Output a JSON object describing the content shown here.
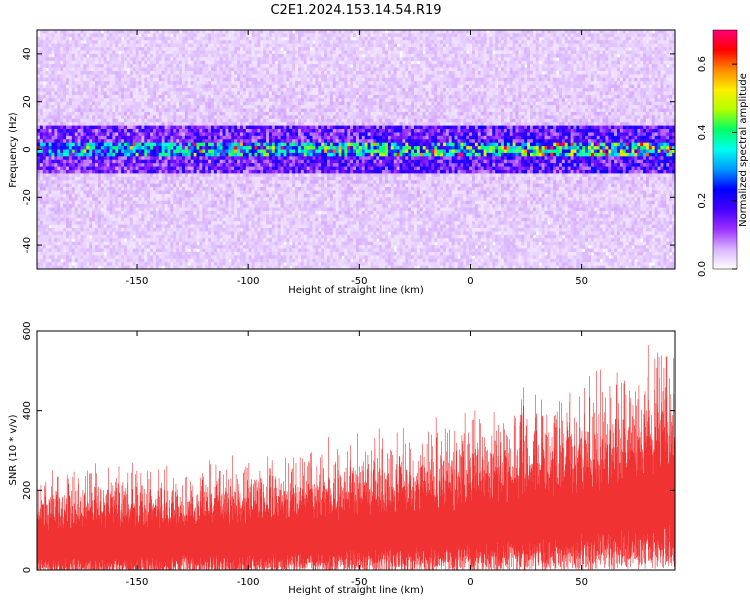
{
  "title": "C2E1.2024.153.14.54.R19",
  "chart_data": [
    {
      "type": "heatmap",
      "xlabel": "Height of straight line (km)",
      "ylabel": "Frequency (Hz)",
      "xlim": [
        -195,
        92
      ],
      "ylim": [
        -50,
        50
      ],
      "x_ticks": [
        -150,
        -100,
        -50,
        0,
        50
      ],
      "y_ticks": [
        -40,
        -20,
        0,
        20,
        40
      ],
      "colorbar": {
        "label": "Normalized spectral amplitude",
        "range": [
          0.0,
          0.7
        ],
        "ticks": [
          0.0,
          0.2,
          0.4,
          0.6
        ],
        "colormap": [
          "#ffffff",
          "#d9b3ff",
          "#9b30ff",
          "#4400ff",
          "#0000ff",
          "#0099ff",
          "#00ffee",
          "#00ff66",
          "#b3ff00",
          "#ffee00",
          "#ff8800",
          "#ff0000",
          "#ff0077"
        ]
      },
      "band_description": {
        "center_hz": 0,
        "core_halfwidth_hz": 3,
        "dense_halfwidth_hz": 10
      }
    },
    {
      "type": "area",
      "xlabel": "Height of straight line (km)",
      "ylabel": "SNR (10 * v/v)",
      "xlim": [
        -195,
        92
      ],
      "ylim": [
        0,
        600
      ],
      "x_ticks": [
        -150,
        -100,
        -50,
        0,
        50
      ],
      "y_ticks": [
        0,
        200,
        400,
        600
      ],
      "color": "#f03232",
      "envelope": {
        "x": [
          -195,
          -150,
          -100,
          -50,
          0,
          50,
          92
        ],
        "upper": [
          210,
          215,
          225,
          270,
          330,
          400,
          480
        ],
        "typical": [
          95,
          100,
          110,
          125,
          150,
          190,
          230
        ]
      }
    }
  ]
}
